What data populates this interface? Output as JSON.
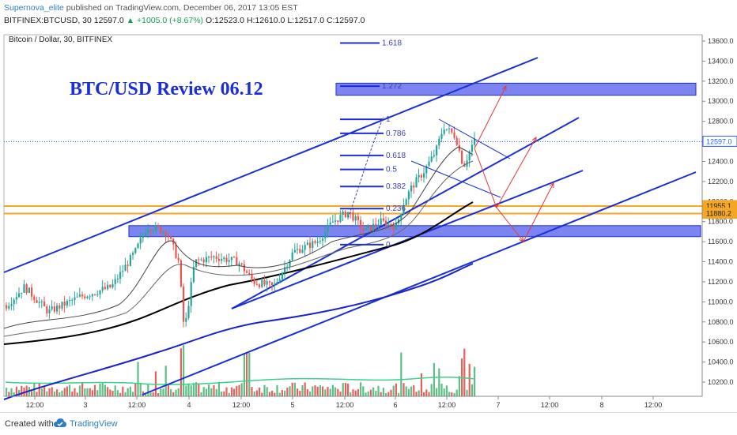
{
  "header": {
    "author": "Supernova_elite",
    "published_text": " published on TradingView.com, December 06, 2017 13:05 EST",
    "symbol": "BITFINEX:BTCUSD, 30",
    "last": "12597.0",
    "change": "▲ +1005.0 (+8.67%)",
    "open": "O:12523.0",
    "high": "H:12610.0",
    "low": "L:12517.0",
    "close": "C:12597.0"
  },
  "footer": {
    "created": "Created with",
    "brand": "TradingView"
  },
  "colors": {
    "channel": "#1b2fd6",
    "zone_fill": "#7b84f0",
    "orange": "#f5a623",
    "up": "#26a69a",
    "down": "#ef5350",
    "vol_up": "#5cbf86",
    "vol_down": "#e5615c",
    "ma_black": "#000000",
    "ma_blue": "#1a24c9",
    "ma_green": "#3fcf8e",
    "arrow": "#e53935",
    "price_blue": "#2962ff"
  },
  "chart_data": {
    "type": "candlestick",
    "title": "Bitcoin / Dollar, 30, BITFINEX",
    "annotation": "BTC/USD Review 06.12",
    "y_axis": {
      "ticks": [
        10200,
        10400,
        10600,
        10800,
        11000,
        11200,
        11400,
        11600,
        11800,
        12000,
        12200,
        12400,
        12600,
        12800,
        13000,
        13200,
        13400,
        13600
      ],
      "labels": [
        "10200.0",
        "10400.0",
        "10600.0",
        "10800.0",
        "11000.0",
        "11200.0",
        "11400.0",
        "11600.0",
        "11800.0",
        "12000.0",
        "12200.0",
        "12400.0",
        "12600.0",
        "12800.0",
        "13000.0",
        "13200.0",
        "13400.0",
        "13600.0"
      ],
      "range": [
        10050,
        13700
      ]
    },
    "x_axis": {
      "ticks": [
        "12:00",
        "3",
        "12:00",
        "4",
        "12:00",
        "5",
        "12:00",
        "6",
        "12:00",
        "7",
        "12:00",
        "8",
        "12:00"
      ]
    },
    "price_labels": [
      {
        "value": 12597.1,
        "text": "12597.0",
        "kind": "last"
      },
      {
        "value": 11955.1,
        "text": "11955.1",
        "kind": "level"
      },
      {
        "value": 11880.2,
        "text": "11880.2",
        "kind": "level"
      }
    ],
    "fib_levels": [
      {
        "ratio": "0",
        "price": 11570
      },
      {
        "ratio": "0.236",
        "price": 11930
      },
      {
        "ratio": "0.382",
        "price": 12150
      },
      {
        "ratio": "0.5",
        "price": 12320
      },
      {
        "ratio": "0.618",
        "price": 12460
      },
      {
        "ratio": "0.786",
        "price": 12680
      },
      {
        "ratio": "1",
        "price": 12820
      },
      {
        "ratio": "1.272",
        "price": 13150
      },
      {
        "ratio": "1.618",
        "price": 13580
      }
    ],
    "resistance_zone": {
      "top": 13180,
      "bottom": 13060
    },
    "support_zone": {
      "top": 11760,
      "bottom": 11650
    },
    "horizontal_levels": [
      11955.1,
      11880.2
    ]
  }
}
